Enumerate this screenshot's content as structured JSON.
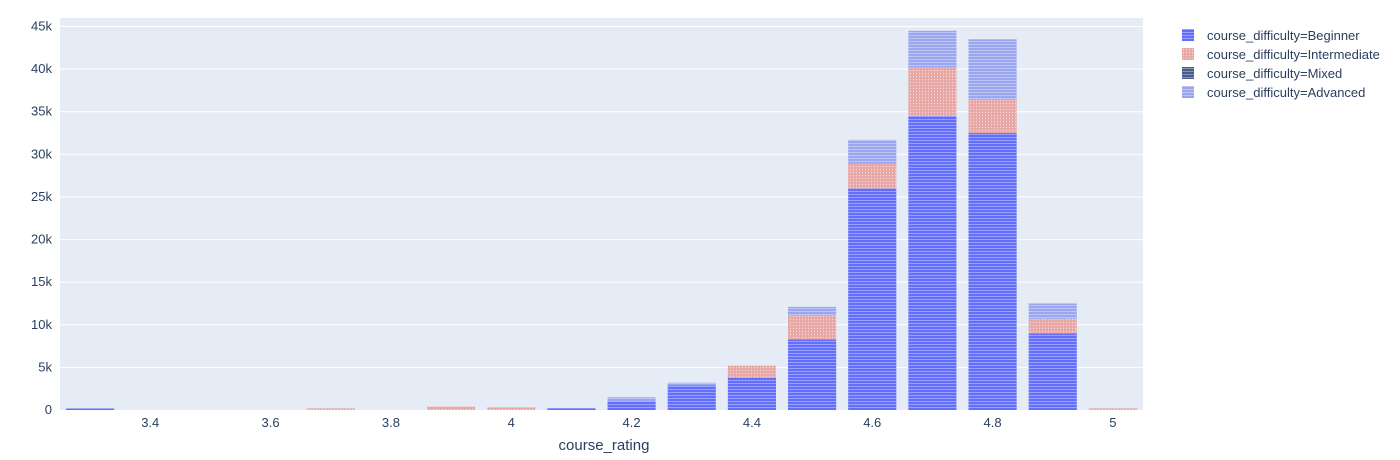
{
  "chart_data": {
    "type": "bar",
    "barmode": "stack",
    "xlabel": "course_rating",
    "ylabel": "",
    "xlim": [
      3.25,
      5.05
    ],
    "ylim": [
      0,
      46000
    ],
    "x_ticks": [
      3.4,
      3.6,
      3.8,
      4,
      4.2,
      4.4,
      4.6,
      4.8,
      5
    ],
    "x_tick_labels": [
      "3.4",
      "3.6",
      "3.8",
      "4",
      "4.2",
      "4.4",
      "4.6",
      "4.8",
      "5"
    ],
    "y_ticks": [
      0,
      5000,
      10000,
      15000,
      20000,
      25000,
      30000,
      35000,
      40000,
      45000
    ],
    "y_tick_labels": [
      "0",
      "5k",
      "10k",
      "15k",
      "20k",
      "25k",
      "30k",
      "35k",
      "40k",
      "45k"
    ],
    "grid": true,
    "legend_position": "top-right",
    "x": [
      3.3,
      3.7,
      3.9,
      4.0,
      4.1,
      4.2,
      4.3,
      4.4,
      4.5,
      4.6,
      4.7,
      4.8,
      4.9,
      5.0
    ],
    "series": [
      {
        "name": "course_difficulty=Beginner",
        "color": "#636efa",
        "values": [
          150,
          0,
          0,
          0,
          200,
          1000,
          2900,
          3800,
          8300,
          26000,
          34500,
          32500,
          9000,
          0
        ]
      },
      {
        "name": "course_difficulty=Intermediate",
        "color": "#e8a9a6",
        "values": [
          0,
          200,
          400,
          300,
          0,
          0,
          0,
          1400,
          2800,
          2900,
          5700,
          3900,
          1700,
          200
        ]
      },
      {
        "name": "course_difficulty=Mixed",
        "color": "#4a5a8a",
        "values": [
          0,
          0,
          0,
          0,
          0,
          0,
          0,
          0,
          0,
          0,
          0,
          0,
          0,
          0
        ]
      },
      {
        "name": "course_difficulty=Advanced",
        "color": "#9aa6f0",
        "values": [
          0,
          0,
          0,
          0,
          0,
          500,
          300,
          0,
          1000,
          2800,
          4300,
          7100,
          1800,
          0
        ]
      }
    ]
  }
}
